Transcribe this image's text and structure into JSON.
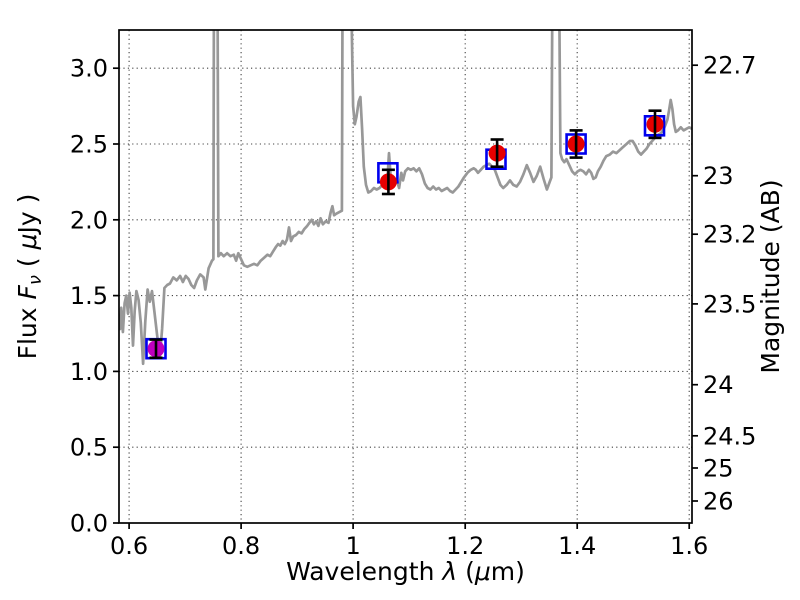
{
  "chart_data": {
    "type": "line+scatter",
    "title": "",
    "xlabel": "Wavelength λ (μm)",
    "xlabel_parts": [
      {
        "t": "Wavelength  ",
        "style": "normal"
      },
      {
        "t": "λ",
        "style": "italic"
      },
      {
        "t": " (",
        "style": "normal"
      },
      {
        "t": "μ",
        "style": "italic"
      },
      {
        "t": "m)",
        "style": "normal"
      }
    ],
    "ylabel_left": "Flux Fν ( μJy )",
    "ylabel_left_parts": [
      {
        "t": "Flux  ",
        "style": "normal"
      },
      {
        "t": "F",
        "style": "italic"
      },
      {
        "t": "ν",
        "style": "italic",
        "sub": true
      },
      {
        "t": "  ( ",
        "style": "normal"
      },
      {
        "t": "μ",
        "style": "italic"
      },
      {
        "t": "Jy )",
        "style": "normal"
      }
    ],
    "ylabel_right": "Magnitude (AB)",
    "ylabel_right_parts": [
      {
        "t": "Magnitude (AB)",
        "style": "normal"
      }
    ],
    "xlim": [
      0.582,
      1.605
    ],
    "ylim": [
      0,
      3.252
    ],
    "grid": "dotted",
    "x_ticks": [
      0.6,
      0.8,
      1.0,
      1.2,
      1.4,
      1.6
    ],
    "x_tick_labels": [
      "0.6",
      "0.8",
      "1",
      "1.2",
      "1.4",
      "1.6"
    ],
    "y_ticks_left": [
      0.0,
      0.5,
      1.0,
      1.5,
      2.0,
      2.5,
      3.0
    ],
    "y_tick_labels_left": [
      "0.0",
      "0.5",
      "1.0",
      "1.5",
      "2.0",
      "2.5",
      "3.0"
    ],
    "y_ticks_right_mag": [
      22.7,
      23,
      23.2,
      23.5,
      24,
      24.5,
      25,
      26
    ],
    "y_tick_labels_right": [
      "22.7",
      "23",
      "23.2",
      "23.5",
      "24",
      "24.5",
      "25",
      "26"
    ],
    "y_ticks_right_flux_equiv": [
      3.02,
      2.291,
      1.905,
      1.445,
      0.912,
      0.575,
      0.363,
      0.145
    ],
    "colors": {
      "spectrum": "#989898",
      "photometry_red": "#e60000",
      "photometry_magenta": "#bf00bf",
      "model_square": "#0000ee",
      "error_bar": "#000000",
      "grid": "#444444",
      "frame": "#000000"
    },
    "photometry_points": [
      {
        "wavelength": 0.648,
        "flux": 1.15,
        "flux_err": 0.06,
        "color": "#bf00bf"
      },
      {
        "wavelength": 1.063,
        "flux": 2.25,
        "flux_err": 0.08,
        "color": "#e60000"
      },
      {
        "wavelength": 1.257,
        "flux": 2.44,
        "flux_err": 0.09,
        "color": "#e60000"
      },
      {
        "wavelength": 1.398,
        "flux": 2.5,
        "flux_err": 0.09,
        "color": "#e60000"
      },
      {
        "wavelength": 1.539,
        "flux": 2.63,
        "flux_err": 0.09,
        "color": "#e60000"
      }
    ],
    "model_photometry_squares": [
      {
        "wavelength": 0.648,
        "flux": 1.15
      },
      {
        "wavelength": 1.062,
        "flux": 2.31
      },
      {
        "wavelength": 1.255,
        "flux": 2.4
      },
      {
        "wavelength": 1.398,
        "flux": 2.5
      },
      {
        "wavelength": 1.538,
        "flux": 2.62
      }
    ],
    "spectrum": {
      "name": "grey spectrum (emission-line spikes clipped at top axis)",
      "points": [
        [
          0.582,
          1.36
        ],
        [
          0.584,
          1.28
        ],
        [
          0.586,
          1.42
        ],
        [
          0.589,
          1.26
        ],
        [
          0.592,
          1.45
        ],
        [
          0.595,
          1.5
        ],
        [
          0.598,
          1.38
        ],
        [
          0.601,
          1.52
        ],
        [
          0.604,
          1.42
        ],
        [
          0.607,
          1.17
        ],
        [
          0.61,
          1.4
        ],
        [
          0.613,
          1.53
        ],
        [
          0.617,
          1.47
        ],
        [
          0.621,
          1.32
        ],
        [
          0.625,
          1.05
        ],
        [
          0.629,
          1.33
        ],
        [
          0.633,
          1.54
        ],
        [
          0.637,
          1.46
        ],
        [
          0.641,
          1.53
        ],
        [
          0.645,
          1.4
        ],
        [
          0.65,
          1.24
        ],
        [
          0.655,
          1.1
        ],
        [
          0.659,
          1.28
        ],
        [
          0.663,
          1.55
        ],
        [
          0.668,
          1.57
        ],
        [
          0.673,
          1.58
        ],
        [
          0.679,
          1.62
        ],
        [
          0.685,
          1.6
        ],
        [
          0.691,
          1.63
        ],
        [
          0.696,
          1.59
        ],
        [
          0.701,
          1.63
        ],
        [
          0.706,
          1.61
        ],
        [
          0.711,
          1.57
        ],
        [
          0.716,
          1.55
        ],
        [
          0.721,
          1.6
        ],
        [
          0.727,
          1.64
        ],
        [
          0.733,
          1.62
        ],
        [
          0.736,
          1.54
        ],
        [
          0.742,
          1.68
        ],
        [
          0.748,
          1.73
        ],
        [
          0.7505,
          1.74
        ],
        [
          0.7515,
          3.4
        ],
        [
          0.758,
          3.4
        ],
        [
          0.7595,
          1.76
        ],
        [
          0.764,
          1.78
        ],
        [
          0.769,
          1.76
        ],
        [
          0.775,
          1.78
        ],
        [
          0.781,
          1.76
        ],
        [
          0.787,
          1.77
        ],
        [
          0.791,
          1.73
        ],
        [
          0.795,
          1.78
        ],
        [
          0.8,
          1.74
        ],
        [
          0.805,
          1.7
        ],
        [
          0.811,
          1.69
        ],
        [
          0.817,
          1.7
        ],
        [
          0.823,
          1.71
        ],
        [
          0.829,
          1.7
        ],
        [
          0.835,
          1.73
        ],
        [
          0.841,
          1.75
        ],
        [
          0.847,
          1.77
        ],
        [
          0.852,
          1.76
        ],
        [
          0.857,
          1.79
        ],
        [
          0.862,
          1.82
        ],
        [
          0.866,
          1.84
        ],
        [
          0.87,
          1.83
        ],
        [
          0.874,
          1.86
        ],
        [
          0.878,
          1.84
        ],
        [
          0.882,
          1.87
        ],
        [
          0.8855,
          1.95
        ],
        [
          0.889,
          1.86
        ],
        [
          0.893,
          1.89
        ],
        [
          0.898,
          1.9
        ],
        [
          0.903,
          1.92
        ],
        [
          0.908,
          1.91
        ],
        [
          0.913,
          1.94
        ],
        [
          0.918,
          1.96
        ],
        [
          0.922,
          1.98
        ],
        [
          0.926,
          2.0
        ],
        [
          0.93,
          1.97
        ],
        [
          0.934,
          1.99
        ],
        [
          0.938,
          1.96
        ],
        [
          0.942,
          2.01
        ],
        [
          0.946,
          1.97
        ],
        [
          0.951,
          1.99
        ],
        [
          0.956,
          1.98
        ],
        [
          0.96,
          2.05
        ],
        [
          0.963,
          2.09
        ],
        [
          0.966,
          2.03
        ],
        [
          0.97,
          2.04
        ],
        [
          0.975,
          2.05
        ],
        [
          0.98,
          2.06
        ],
        [
          0.981,
          3.4
        ],
        [
          0.997,
          3.4
        ],
        [
          1.0,
          2.75
        ],
        [
          1.003,
          2.63
        ],
        [
          1.006,
          2.68
        ],
        [
          1.01,
          2.78
        ],
        [
          1.013,
          2.81
        ],
        [
          1.016,
          2.6
        ],
        [
          1.019,
          2.35
        ],
        [
          1.023,
          2.23
        ],
        [
          1.027,
          2.18
        ],
        [
          1.032,
          2.19
        ],
        [
          1.037,
          2.21
        ],
        [
          1.042,
          2.2
        ],
        [
          1.047,
          2.21
        ],
        [
          1.052,
          2.23
        ],
        [
          1.057,
          2.24
        ],
        [
          1.061,
          2.26
        ],
        [
          1.064,
          2.44
        ],
        [
          1.067,
          2.28
        ],
        [
          1.071,
          2.23
        ],
        [
          1.075,
          2.27
        ],
        [
          1.079,
          2.25
        ],
        [
          1.082,
          2.21
        ],
        [
          1.086,
          2.31
        ],
        [
          1.089,
          2.26
        ],
        [
          1.093,
          2.32
        ],
        [
          1.098,
          2.34
        ],
        [
          1.103,
          2.33
        ],
        [
          1.108,
          2.34
        ],
        [
          1.113,
          2.32
        ],
        [
          1.118,
          2.34
        ],
        [
          1.123,
          2.3
        ],
        [
          1.128,
          2.24
        ],
        [
          1.133,
          2.21
        ],
        [
          1.138,
          2.2
        ],
        [
          1.143,
          2.22
        ],
        [
          1.148,
          2.2
        ],
        [
          1.153,
          2.21
        ],
        [
          1.158,
          2.19
        ],
        [
          1.163,
          2.2
        ],
        [
          1.168,
          2.21
        ],
        [
          1.173,
          2.19
        ],
        [
          1.178,
          2.18
        ],
        [
          1.183,
          2.2
        ],
        [
          1.188,
          2.22
        ],
        [
          1.193,
          2.25
        ],
        [
          1.198,
          2.28
        ],
        [
          1.204,
          2.31
        ],
        [
          1.21,
          2.33
        ],
        [
          1.215,
          2.34
        ],
        [
          1.219,
          2.33
        ],
        [
          1.223,
          2.31
        ],
        [
          1.228,
          2.33
        ],
        [
          1.233,
          2.35
        ],
        [
          1.238,
          2.36
        ],
        [
          1.243,
          2.37
        ],
        [
          1.248,
          2.35
        ],
        [
          1.253,
          2.33
        ],
        [
          1.258,
          2.28
        ],
        [
          1.263,
          2.23
        ],
        [
          1.268,
          2.21
        ],
        [
          1.274,
          2.23
        ],
        [
          1.28,
          2.26
        ],
        [
          1.286,
          2.23
        ],
        [
          1.292,
          2.22
        ],
        [
          1.298,
          2.25
        ],
        [
          1.304,
          2.3
        ],
        [
          1.31,
          2.36
        ],
        [
          1.316,
          2.31
        ],
        [
          1.322,
          2.25
        ],
        [
          1.328,
          2.29
        ],
        [
          1.334,
          2.35
        ],
        [
          1.34,
          2.27
        ],
        [
          1.346,
          2.2
        ],
        [
          1.351,
          2.25
        ],
        [
          1.354,
          2.28
        ],
        [
          1.3555,
          3.4
        ],
        [
          1.368,
          3.4
        ],
        [
          1.37,
          2.44
        ],
        [
          1.373,
          2.4
        ],
        [
          1.377,
          2.38
        ],
        [
          1.381,
          2.4
        ],
        [
          1.386,
          2.36
        ],
        [
          1.391,
          2.32
        ],
        [
          1.396,
          2.3
        ],
        [
          1.401,
          2.32
        ],
        [
          1.406,
          2.33
        ],
        [
          1.411,
          2.32
        ],
        [
          1.416,
          2.3
        ],
        [
          1.421,
          2.33
        ],
        [
          1.425,
          2.31
        ],
        [
          1.429,
          2.27
        ],
        [
          1.433,
          2.28
        ],
        [
          1.437,
          2.32
        ],
        [
          1.442,
          2.35
        ],
        [
          1.447,
          2.39
        ],
        [
          1.452,
          2.42
        ],
        [
          1.458,
          2.43
        ],
        [
          1.464,
          2.45
        ],
        [
          1.47,
          2.44
        ],
        [
          1.476,
          2.46
        ],
        [
          1.482,
          2.48
        ],
        [
          1.488,
          2.5
        ],
        [
          1.494,
          2.52
        ],
        [
          1.499,
          2.52
        ],
        [
          1.504,
          2.49
        ],
        [
          1.509,
          2.45
        ],
        [
          1.514,
          2.43
        ],
        [
          1.519,
          2.45
        ],
        [
          1.524,
          2.47
        ],
        [
          1.529,
          2.5
        ],
        [
          1.534,
          2.52
        ],
        [
          1.539,
          2.54
        ],
        [
          1.544,
          2.56
        ],
        [
          1.549,
          2.57
        ],
        [
          1.553,
          2.59
        ],
        [
          1.557,
          2.62
        ],
        [
          1.561,
          2.66
        ],
        [
          1.564,
          2.72
        ],
        [
          1.567,
          2.79
        ],
        [
          1.57,
          2.73
        ],
        [
          1.573,
          2.63
        ],
        [
          1.576,
          2.58
        ],
        [
          1.58,
          2.59
        ],
        [
          1.585,
          2.61
        ],
        [
          1.59,
          2.59
        ],
        [
          1.595,
          2.6
        ],
        [
          1.6,
          2.61
        ],
        [
          1.605,
          2.6
        ]
      ]
    }
  }
}
